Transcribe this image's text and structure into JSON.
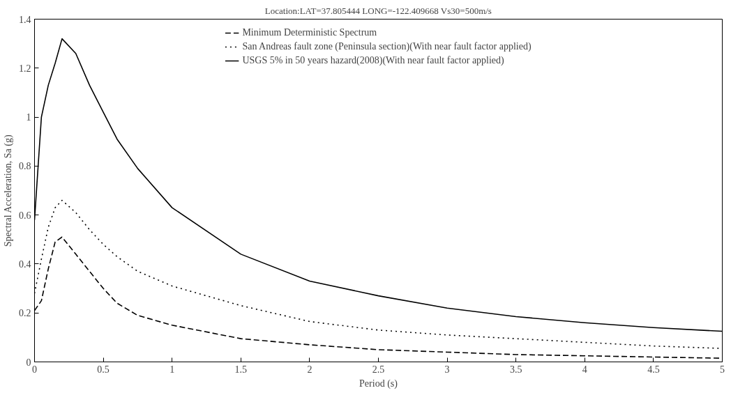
{
  "chart_data": {
    "type": "line",
    "title": "Location:LAT=37.805444 LONG=-122.409668 Vs30=500m/s",
    "xlabel": "Period (s)",
    "ylabel": "Spectral Acceleration, Sa (g)",
    "x": [
      0,
      0.05,
      0.1,
      0.15,
      0.2,
      0.3,
      0.4,
      0.5,
      0.6,
      0.75,
      1.0,
      1.5,
      2.0,
      2.5,
      3.0,
      3.5,
      4.0,
      4.5,
      5.0
    ],
    "series": [
      {
        "name": "Minimum Deterministic Spectrum",
        "color": "#000000",
        "line_style": "dashed",
        "values": [
          0.21,
          0.25,
          0.38,
          0.49,
          0.51,
          0.44,
          0.37,
          0.3,
          0.24,
          0.19,
          0.15,
          0.095,
          0.07,
          0.05,
          0.04,
          0.03,
          0.025,
          0.02,
          0.015
        ]
      },
      {
        "name": "San Andreas fault zone (Peninsula section)(With near fault factor applied)",
        "color": "#000000",
        "line_style": "dotted",
        "values": [
          0.28,
          0.42,
          0.55,
          0.63,
          0.66,
          0.61,
          0.54,
          0.48,
          0.43,
          0.37,
          0.31,
          0.23,
          0.165,
          0.13,
          0.11,
          0.095,
          0.08,
          0.065,
          0.055
        ]
      },
      {
        "name": "USGS 5% in 50 years hazard(2008)(With near fault factor applied)",
        "color": "#000000",
        "line_style": "solid",
        "values": [
          0.58,
          1.0,
          1.13,
          1.22,
          1.32,
          1.26,
          1.13,
          1.02,
          0.91,
          0.79,
          0.63,
          0.44,
          0.33,
          0.27,
          0.22,
          0.185,
          0.16,
          0.14,
          0.125
        ]
      }
    ],
    "xlim": [
      0,
      5
    ],
    "ylim": [
      0,
      1.4
    ],
    "xticks": [
      0,
      0.5,
      1,
      1.5,
      2,
      2.5,
      3,
      3.5,
      4,
      4.5,
      5
    ],
    "yticks": [
      0,
      0.2,
      0.4,
      0.6,
      0.8,
      1,
      1.2,
      1.4
    ],
    "legend": "top",
    "grid": false
  }
}
